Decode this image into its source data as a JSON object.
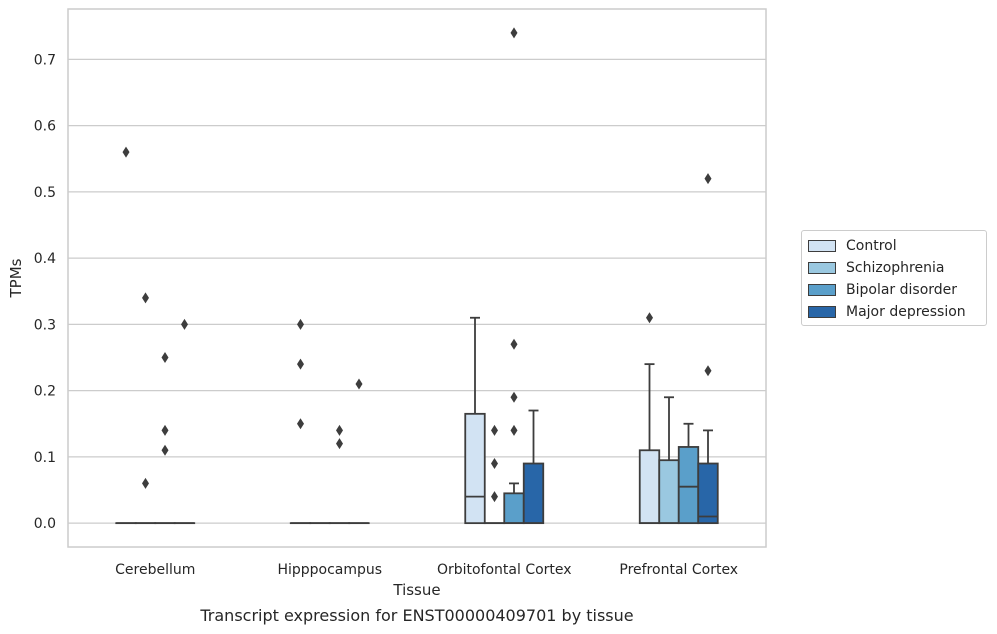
{
  "caption": "Transcript expression for ENST00000409701 by tissue",
  "chart_data": {
    "type": "box",
    "xlabel": "Tissue",
    "ylabel": "TPMs",
    "ylim": [
      -0.036,
      0.776
    ],
    "yticks": [
      0.0,
      0.1,
      0.2,
      0.3,
      0.4,
      0.5,
      0.6,
      0.7
    ],
    "ytick_labels": [
      "0.0",
      "0.1",
      "0.2",
      "0.3",
      "0.4",
      "0.5",
      "0.6",
      "0.7"
    ],
    "grid": "horizontal",
    "legend_position": "right",
    "categories": [
      "Cerebellum",
      "Hipppocampus",
      "Orbitofontal Cortex",
      "Prefrontal Cortex"
    ],
    "series": [
      {
        "name": "Control",
        "color": "#d2e3f3",
        "boxes": [
          {
            "q1": 0.0,
            "median": 0.0,
            "q3": 0.0,
            "whislo": 0.0,
            "whishi": 0.0,
            "fliers": [
              0.56
            ]
          },
          {
            "q1": 0.0,
            "median": 0.0,
            "q3": 0.0,
            "whislo": 0.0,
            "whishi": 0.0,
            "fliers": [
              0.3,
              0.24,
              0.15
            ]
          },
          {
            "q1": 0.0,
            "median": 0.04,
            "q3": 0.165,
            "whislo": 0.0,
            "whishi": 0.31,
            "fliers": []
          },
          {
            "q1": 0.0,
            "median": 0.0,
            "q3": 0.11,
            "whislo": 0.0,
            "whishi": 0.24,
            "fliers": [
              0.31
            ]
          }
        ]
      },
      {
        "name": "Schizophrenia",
        "color": "#9ac8e0",
        "boxes": [
          {
            "q1": 0.0,
            "median": 0.0,
            "q3": 0.0,
            "whislo": 0.0,
            "whishi": 0.0,
            "fliers": [
              0.34,
              0.06
            ]
          },
          {
            "q1": 0.0,
            "median": 0.0,
            "q3": 0.0,
            "whislo": 0.0,
            "whishi": 0.0,
            "fliers": []
          },
          {
            "q1": 0.0,
            "median": 0.0,
            "q3": 0.0,
            "whislo": 0.0,
            "whishi": 0.0,
            "fliers": [
              0.14,
              0.09,
              0.04
            ]
          },
          {
            "q1": 0.0,
            "median": 0.0,
            "q3": 0.095,
            "whislo": 0.0,
            "whishi": 0.19,
            "fliers": []
          }
        ]
      },
      {
        "name": "Bipolar disorder",
        "color": "#5a9fca",
        "boxes": [
          {
            "q1": 0.0,
            "median": 0.0,
            "q3": 0.0,
            "whislo": 0.0,
            "whishi": 0.0,
            "fliers": [
              0.25,
              0.14,
              0.11
            ]
          },
          {
            "q1": 0.0,
            "median": 0.0,
            "q3": 0.0,
            "whislo": 0.0,
            "whishi": 0.0,
            "fliers": [
              0.14,
              0.12
            ]
          },
          {
            "q1": 0.0,
            "median": 0.0,
            "q3": 0.045,
            "whislo": 0.0,
            "whishi": 0.06,
            "fliers": [
              0.27,
              0.19,
              0.14,
              0.74
            ]
          },
          {
            "q1": 0.0,
            "median": 0.055,
            "q3": 0.115,
            "whislo": 0.0,
            "whishi": 0.15,
            "fliers": []
          }
        ]
      },
      {
        "name": "Major depression",
        "color": "#2866a8",
        "boxes": [
          {
            "q1": 0.0,
            "median": 0.0,
            "q3": 0.0,
            "whislo": 0.0,
            "whishi": 0.0,
            "fliers": [
              0.3
            ]
          },
          {
            "q1": 0.0,
            "median": 0.0,
            "q3": 0.0,
            "whislo": 0.0,
            "whishi": 0.0,
            "fliers": [
              0.21
            ]
          },
          {
            "q1": 0.0,
            "median": 0.0,
            "q3": 0.09,
            "whislo": 0.0,
            "whishi": 0.17,
            "fliers": []
          },
          {
            "q1": 0.0,
            "median": 0.01,
            "q3": 0.09,
            "whislo": 0.0,
            "whishi": 0.14,
            "fliers": [
              0.52,
              0.23
            ]
          }
        ]
      }
    ]
  }
}
